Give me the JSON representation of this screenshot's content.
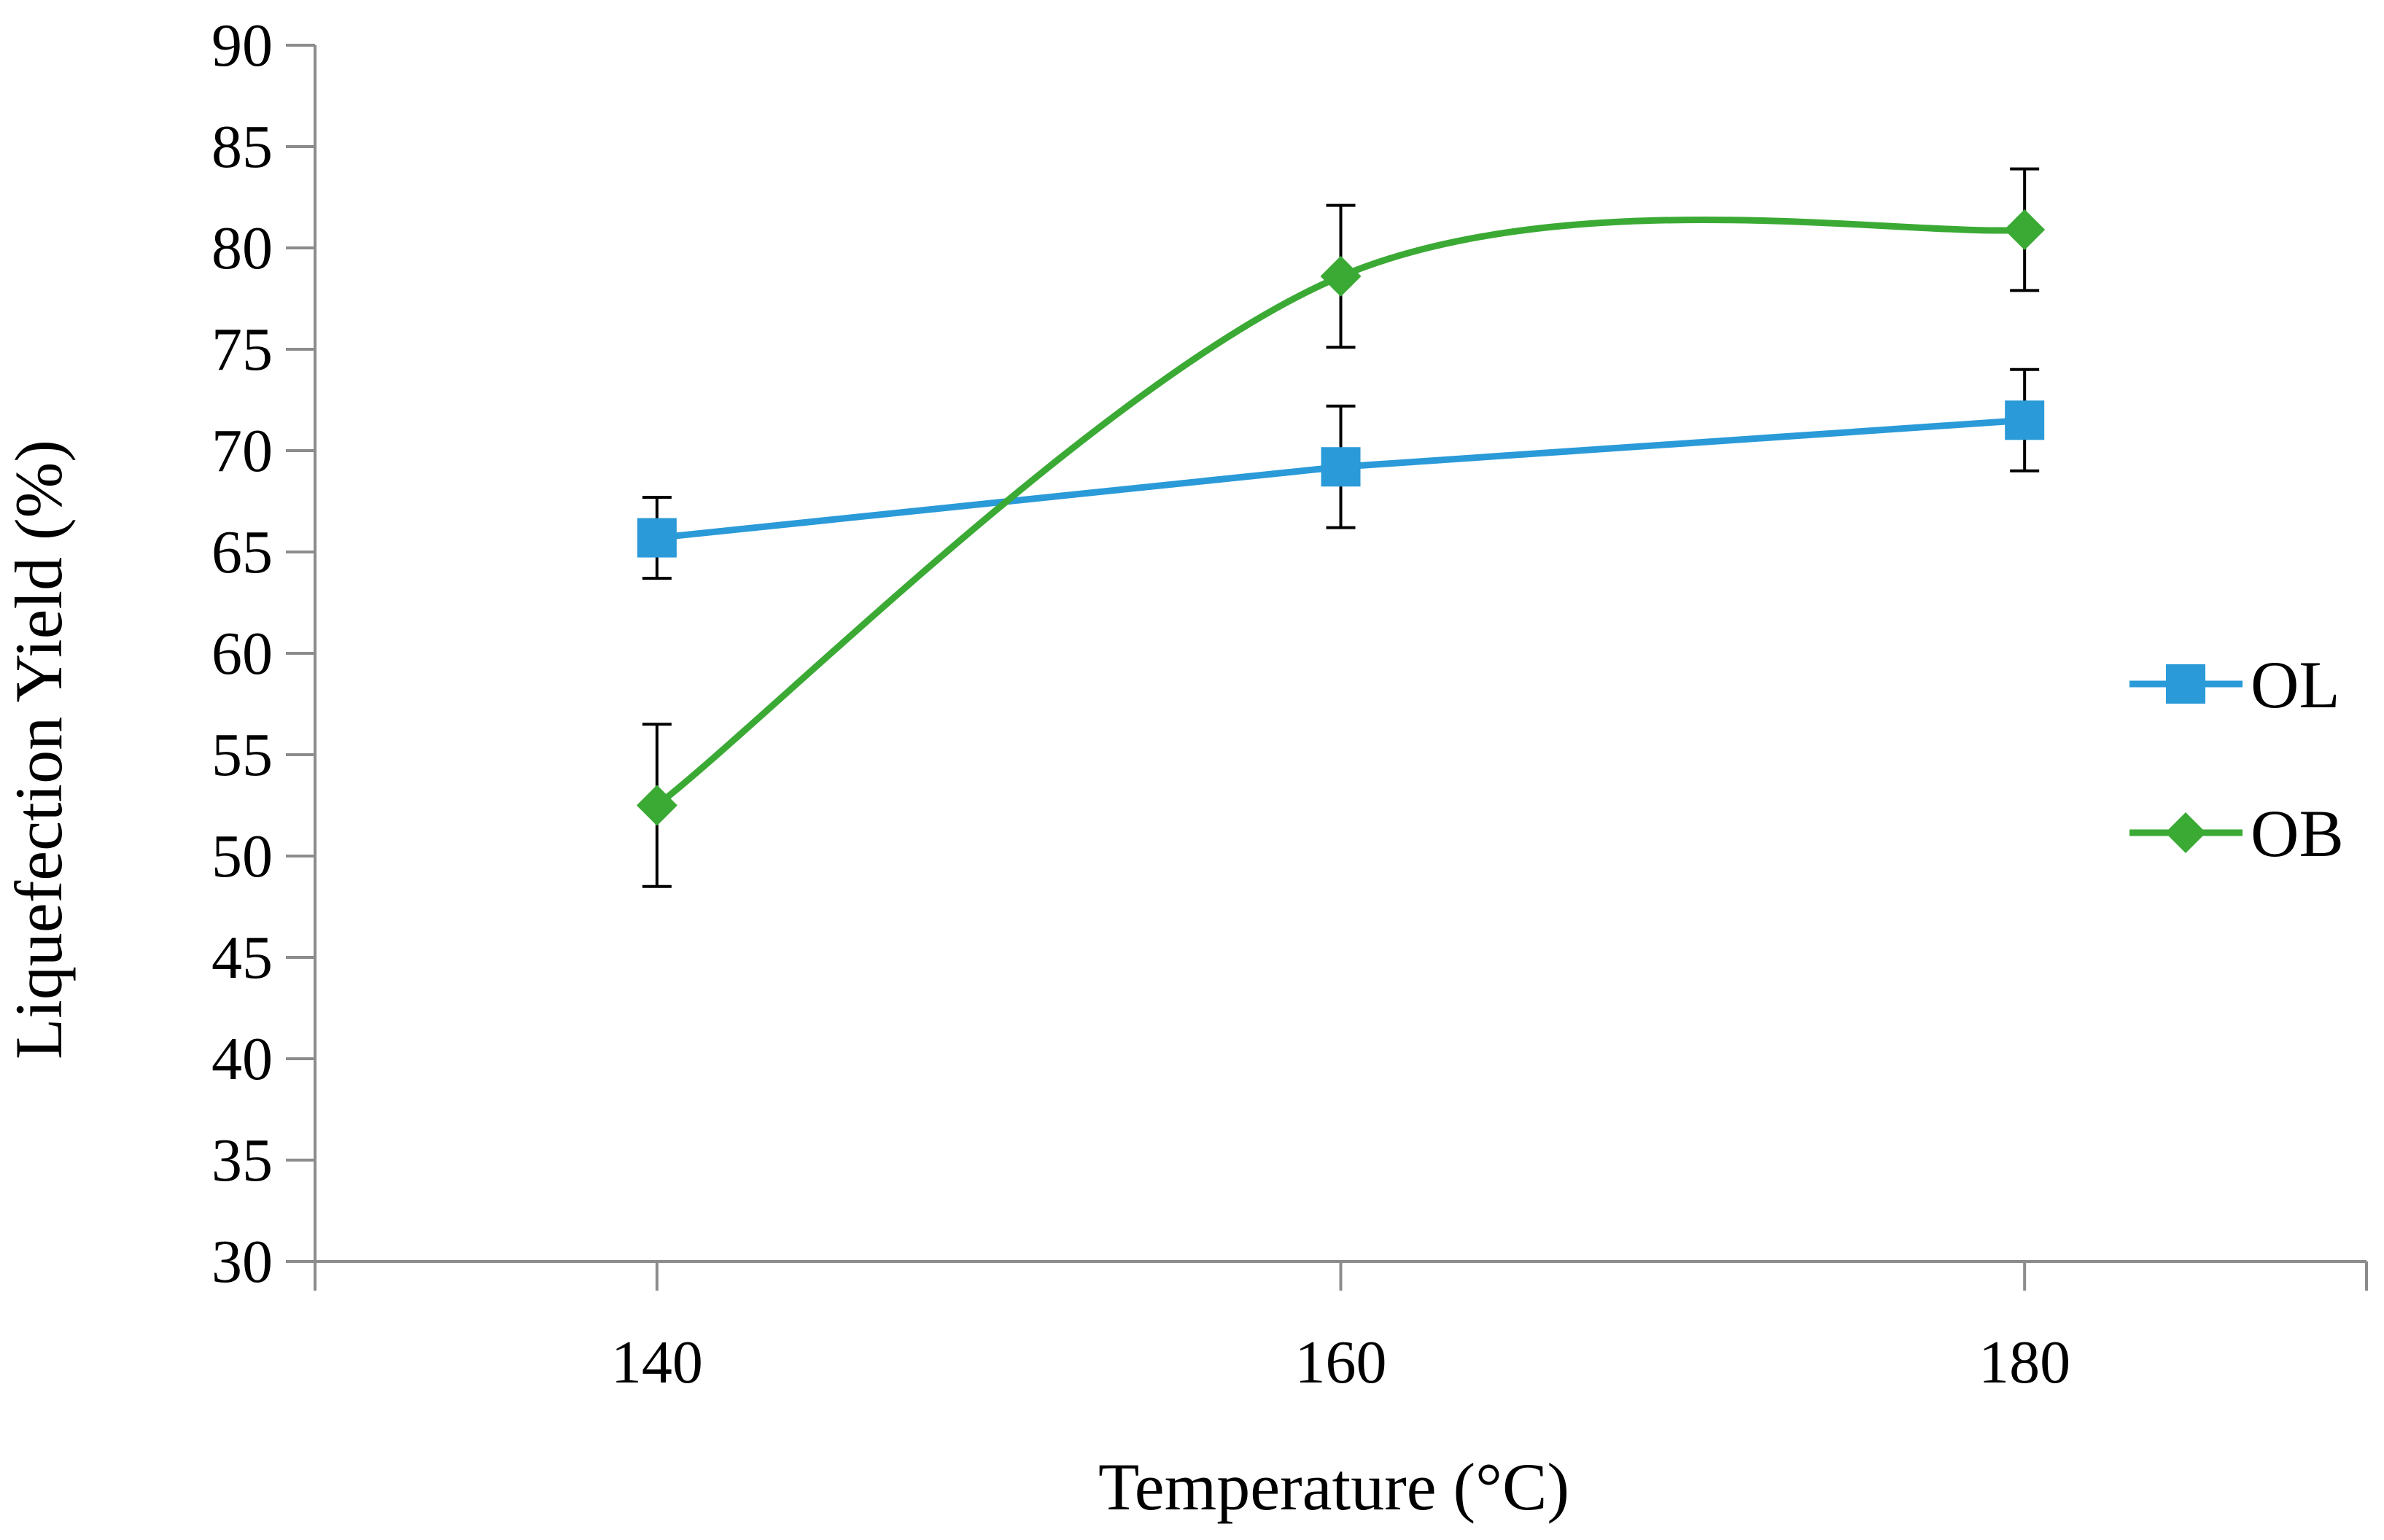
{
  "chart_data": {
    "type": "line",
    "title": "",
    "xlabel": "Temperature (°C)",
    "ylabel": "Liquefection Yield (%)",
    "xlim": [
      130,
      190
    ],
    "ylim": [
      30,
      90
    ],
    "x_ticks": [
      "140",
      "160",
      "180"
    ],
    "y_ticks": [
      "30",
      "35",
      "40",
      "45",
      "50",
      "55",
      "60",
      "65",
      "70",
      "75",
      "80",
      "85",
      "90"
    ],
    "x": [
      140,
      160,
      180
    ],
    "legend_position": "right",
    "series": [
      {
        "name": "OL",
        "color": "#2A9AD8",
        "marker": "square",
        "smooth": false,
        "values": [
          65.7,
          69.2,
          71.5
        ],
        "error": [
          2.0,
          3.0,
          2.5
        ]
      },
      {
        "name": "OB",
        "color": "#3BAA35",
        "marker": "diamond",
        "smooth": true,
        "values": [
          52.5,
          78.6,
          80.9
        ],
        "error": [
          4.0,
          3.5,
          3.0
        ]
      }
    ]
  }
}
